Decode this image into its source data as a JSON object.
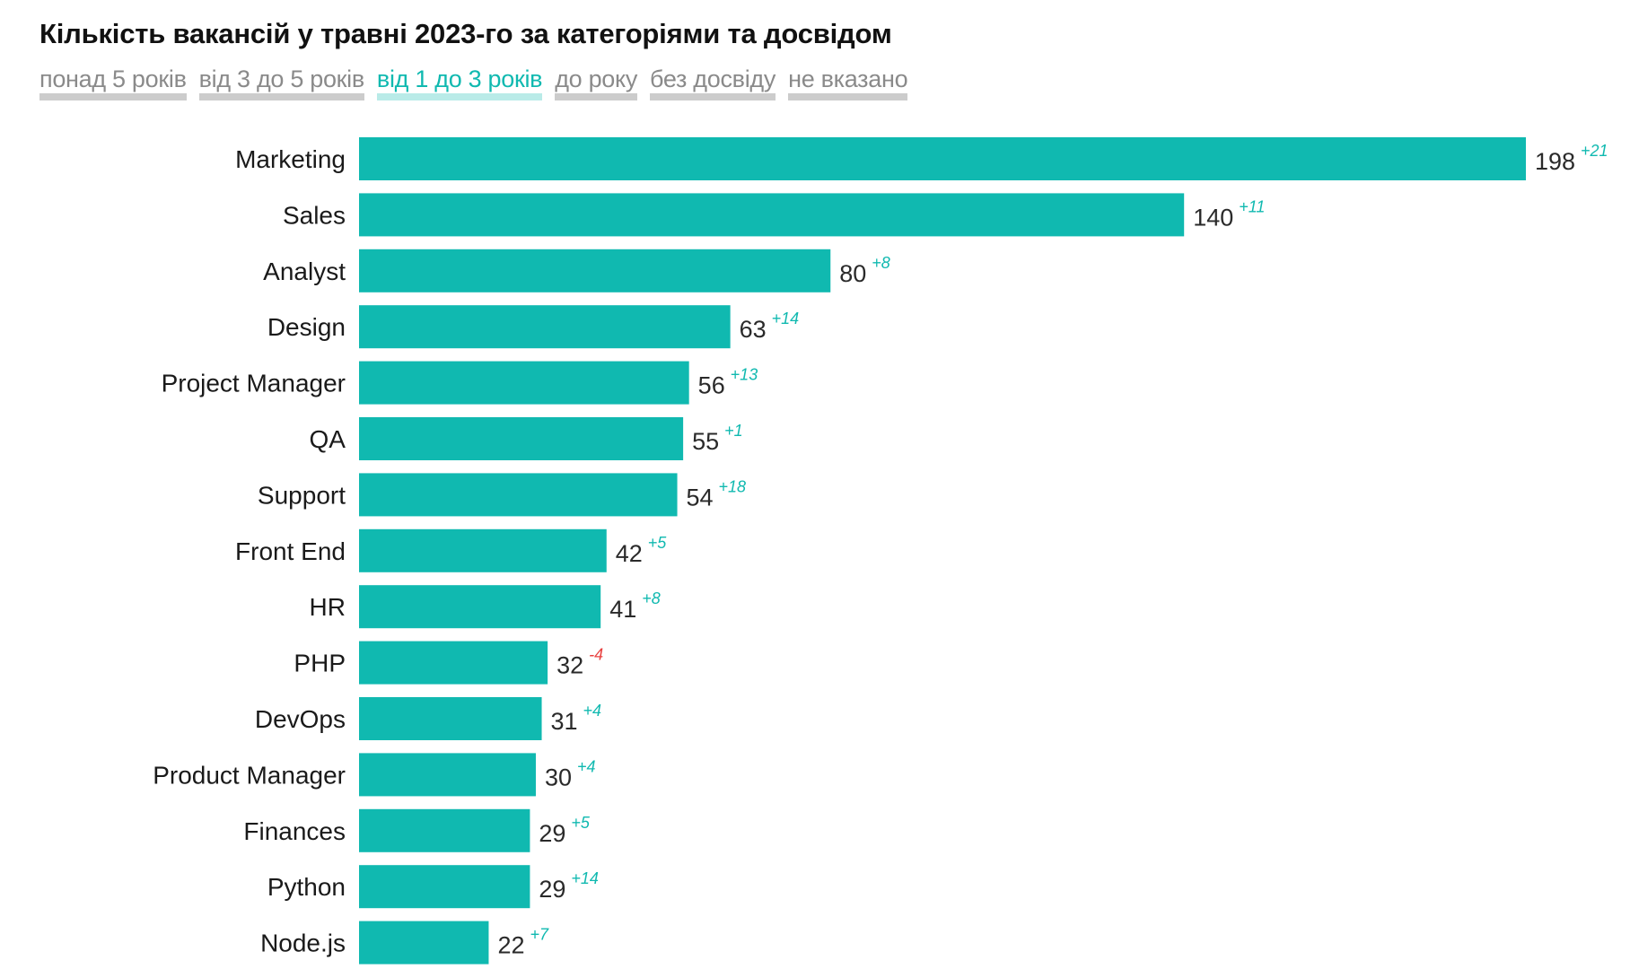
{
  "title": "Кількість вакансій у травні 2023-го за категоріями та досвідом",
  "tabs": [
    {
      "label": "понад 5 років",
      "active": false
    },
    {
      "label": "від 3 до 5 років",
      "active": false
    },
    {
      "label": "від 1 до 3 років",
      "active": true
    },
    {
      "label": "до року",
      "active": false
    },
    {
      "label": "без досвіду",
      "active": false
    },
    {
      "label": "не вказано",
      "active": false
    }
  ],
  "colors": {
    "bar": "#10b9b0",
    "delta_positive": "#10b9b0",
    "delta_negative": "#e8403f"
  },
  "chart_data": {
    "type": "bar",
    "orientation": "horizontal",
    "title": "Кількість вакансій у травні 2023-го за категоріями та досвідом",
    "xlim": [
      0,
      198
    ],
    "grid": false,
    "categories": [
      "Marketing",
      "Sales",
      "Analyst",
      "Design",
      "Project Manager",
      "QA",
      "Support",
      "Front End",
      "HR",
      "PHP",
      "DevOps",
      "Product Manager",
      "Finances",
      "Python",
      "Node.js"
    ],
    "values": [
      198,
      140,
      80,
      63,
      56,
      55,
      54,
      42,
      41,
      32,
      31,
      30,
      29,
      29,
      22
    ],
    "deltas": [
      "+21",
      "+11",
      "+8",
      "+14",
      "+13",
      "+1",
      "+18",
      "+5",
      "+8",
      "-4",
      "+4",
      "+4",
      "+5",
      "+14",
      "+7"
    ]
  }
}
